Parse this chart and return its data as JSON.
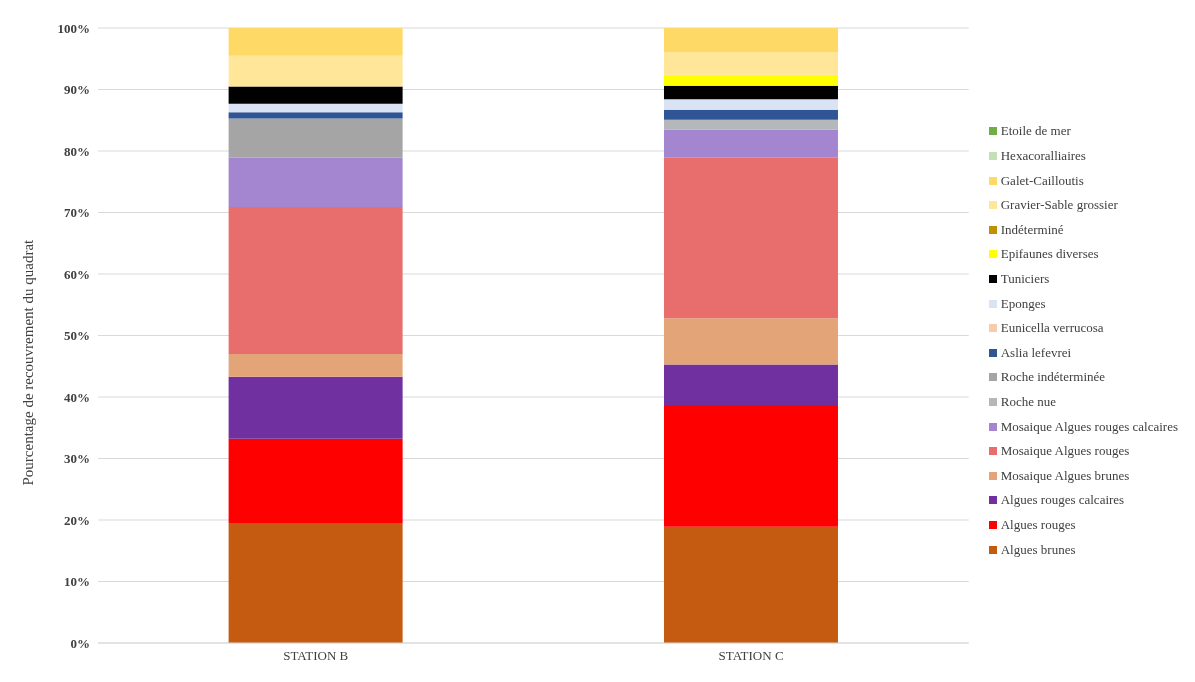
{
  "chart_data": {
    "type": "bar",
    "stacked": true,
    "ylabel": "Pourcentage de recouvrement du quadrat",
    "categories": [
      "STATION B",
      "STATION C"
    ],
    "ylim": [
      0,
      100
    ],
    "yticks": [
      {
        "value": 0,
        "label": "0%"
      },
      {
        "value": 10,
        "label": "10%"
      },
      {
        "value": 20,
        "label": "20%"
      },
      {
        "value": 30,
        "label": "30%"
      },
      {
        "value": 40,
        "label": "40%"
      },
      {
        "value": 50,
        "label": "50%"
      },
      {
        "value": 60,
        "label": "60%"
      },
      {
        "value": 70,
        "label": "70%"
      },
      {
        "value": 80,
        "label": "80%"
      },
      {
        "value": 90,
        "label": "90%"
      },
      {
        "value": 100,
        "label": "100%"
      }
    ],
    "grid": "y",
    "legend": "right",
    "series": [
      {
        "name": "Algues brunes",
        "color": "#c55a11",
        "values": [
          19.5,
          18.9
        ]
      },
      {
        "name": "Algues rouges",
        "color": "#ff0000",
        "values": [
          13.7,
          19.8
        ]
      },
      {
        "name": "Algues rouges calcaires",
        "color": "#7030a0",
        "values": [
          10.1,
          6.6
        ]
      },
      {
        "name": "Mosaique Algues brunes",
        "color": "#e3a477",
        "values": [
          3.7,
          7.5
        ]
      },
      {
        "name": "Mosaique Algues rouges",
        "color": "#e86d6d",
        "values": [
          23.9,
          26.1
        ]
      },
      {
        "name": "Mosaique Algues rouges calcaires",
        "color": "#a486d0",
        "values": [
          8.0,
          4.6
        ]
      },
      {
        "name": "Roche nue",
        "color": "#b4b8bb",
        "values": [
          0,
          1.6
        ]
      },
      {
        "name": "Roche indéterminée",
        "color": "#a5a5a5",
        "values": [
          6.4,
          0
        ]
      },
      {
        "name": "Aslia lefevrei",
        "color": "#2f5597",
        "values": [
          1.0,
          1.6
        ]
      },
      {
        "name": "Eunicella verrucosa",
        "color": "#f8cbad",
        "values": [
          0,
          0
        ]
      },
      {
        "name": "Eponges",
        "color": "#dae3f3",
        "values": [
          1.4,
          1.7
        ]
      },
      {
        "name": "Tuniciers",
        "color": "#000000",
        "values": [
          2.8,
          2.2
        ]
      },
      {
        "name": "Epifaunes diverses",
        "color": "#ffff00",
        "values": [
          0,
          1.8
        ]
      },
      {
        "name": "Indéterminé",
        "color": "#bf9000",
        "values": [
          0,
          0
        ]
      },
      {
        "name": "Gravier-Sable grossier",
        "color": "#ffe699",
        "values": [
          5.0,
          3.6
        ]
      },
      {
        "name": "Galet-Cailloutis",
        "color": "#ffd966",
        "values": [
          4.5,
          4.0
        ]
      },
      {
        "name": "Hexacoralliaires",
        "color": "#c5e0b4",
        "values": [
          0,
          0
        ]
      },
      {
        "name": "Etoile de mer",
        "color": "#70ad47",
        "values": [
          0,
          0
        ]
      }
    ]
  }
}
